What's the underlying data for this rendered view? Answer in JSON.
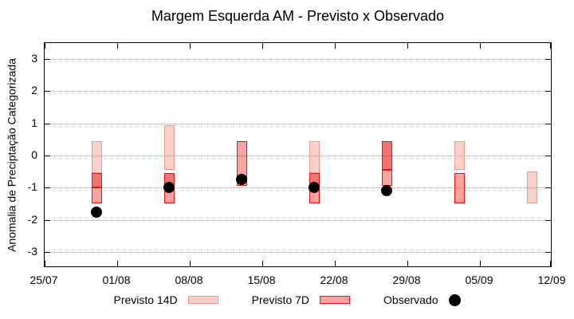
{
  "chart_data": {
    "type": "bar",
    "title": "Margem Esquerda AM - Previsto x Observado",
    "xlabel": "",
    "ylabel": "Anomalia de Preciptação Categorizada",
    "ylim": [
      -3.5,
      3.5
    ],
    "yticks": [
      3,
      2,
      1,
      0,
      -1,
      -2,
      -3
    ],
    "x_axis": {
      "tick_labels": [
        "25/07",
        "01/08",
        "08/08",
        "15/08",
        "22/08",
        "29/08",
        "05/09",
        "12/09"
      ],
      "tick_days": [
        0,
        7,
        14,
        21,
        28,
        35,
        42,
        49
      ],
      "range_days": 49
    },
    "grid": "horizontal-dotted",
    "legend": [
      {
        "label": "Previsto 14D",
        "style": "p14"
      },
      {
        "label": "Previsto 7D",
        "style": "p7"
      },
      {
        "label": "Observado",
        "style": "dot"
      }
    ],
    "bars": [
      {
        "date": "30/07",
        "day": 5,
        "segments": [
          {
            "from": 0.45,
            "to": -0.55,
            "style": "p14"
          },
          {
            "from": -0.55,
            "to": -1.0,
            "style": "p7dark"
          },
          {
            "from": -1.0,
            "to": -1.5,
            "style": "p7"
          }
        ],
        "observed": -1.75
      },
      {
        "date": "06/08",
        "day": 12,
        "segments": [
          {
            "from": 0.95,
            "to": -0.45,
            "style": "p14"
          },
          {
            "from": -0.55,
            "to": -1.0,
            "style": "p7dark"
          },
          {
            "from": -1.0,
            "to": -1.5,
            "style": "p7"
          }
        ],
        "observed": -1.0
      },
      {
        "date": "13/08",
        "day": 19,
        "segments": [
          {
            "from": 0.45,
            "to": -0.95,
            "style": "p7"
          }
        ],
        "observed": -0.75
      },
      {
        "date": "20/08",
        "day": 26,
        "segments": [
          {
            "from": 0.45,
            "to": -0.55,
            "style": "p14"
          },
          {
            "from": -0.55,
            "to": -1.0,
            "style": "p7dark"
          },
          {
            "from": -1.0,
            "to": -1.5,
            "style": "p7"
          }
        ],
        "observed": -1.0
      },
      {
        "date": "27/08",
        "day": 33,
        "segments": [
          {
            "from": 0.45,
            "to": -0.45,
            "style": "p7dark"
          },
          {
            "from": -0.45,
            "to": -0.95,
            "style": "p7"
          }
        ],
        "observed": -1.1
      },
      {
        "date": "03/09",
        "day": 40,
        "segments": [
          {
            "from": 0.45,
            "to": -0.45,
            "style": "p14"
          },
          {
            "from": -0.55,
            "to": -1.5,
            "style": "p7"
          }
        ],
        "observed": null
      },
      {
        "date": "10/09",
        "day": 47,
        "segments": [
          {
            "from": -0.5,
            "to": -1.5,
            "style": "p14"
          }
        ],
        "observed": null
      }
    ],
    "colors": {
      "previsto_14d_fill": "#f9cec6",
      "previsto_14d_border": "#ef9b8c",
      "previsto_7d_fill": "#fb9e96",
      "previsto_7d_overlap_fill": "#f76f6b",
      "previsto_7d_border": "#e41414",
      "observado": "#000000",
      "grid": "#9c9c9c",
      "frame": "#000000"
    }
  }
}
